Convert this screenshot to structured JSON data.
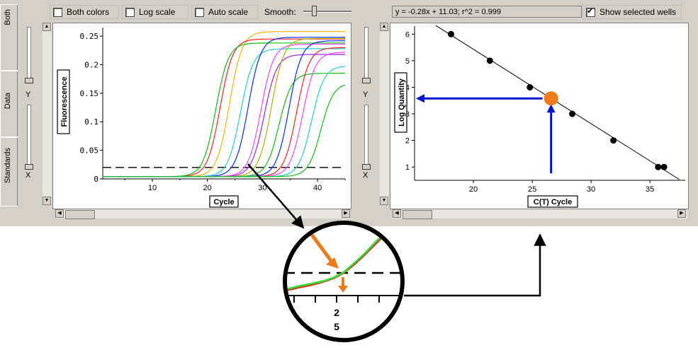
{
  "toolbar": {
    "both_colors": {
      "label": "Both colors",
      "checked": false
    },
    "log_scale": {
      "label": "Log scale",
      "checked": false
    },
    "auto_scale": {
      "label": "Auto scale",
      "checked": false
    },
    "smooth_label": "Smooth:",
    "smooth_level": 0.2
  },
  "side_tabs": [
    "Both",
    "Data",
    "Standards"
  ],
  "slider_axes": {
    "y": "Y",
    "x": "X"
  },
  "right_panel": {
    "equation": "y = -0.28x + 11.03;  r^2 = 0.999",
    "show_selected_wells": {
      "label": "Show selected wells",
      "checked": true
    }
  },
  "chart_data": [
    {
      "type": "line",
      "xlabel": "Cycle",
      "ylabel": "Fluorescence",
      "xlim": [
        1,
        45
      ],
      "ylim": [
        0,
        0.265
      ],
      "x_ticks": [
        "10",
        "20",
        "30",
        "40"
      ],
      "y_ticks": [
        "0",
        "0.05",
        "0.1",
        "0.15",
        "0.2",
        "0.25"
      ],
      "threshold": 0.02,
      "series": [
        {
          "color": "#ffb000",
          "midpoint": 24.0,
          "plateau": 0.258
        },
        {
          "color": "#ff2020",
          "midpoint": 22.3,
          "plateau": 0.245
        },
        {
          "color": "#10c010",
          "midpoint": 21.5,
          "plateau": 0.238
        },
        {
          "color": "#20d0d0",
          "midpoint": 26.0,
          "plateau": 0.228
        },
        {
          "color": "#0030ff",
          "midpoint": 27.4,
          "plateau": 0.248
        },
        {
          "color": "#ff40ff",
          "midpoint": 29.7,
          "plateau": 0.236
        },
        {
          "color": "#a020f0",
          "midpoint": 30.3,
          "plateau": 0.218
        },
        {
          "color": "#b0b000",
          "midpoint": 31.6,
          "plateau": 0.246
        },
        {
          "color": "#10c010",
          "midpoint": 33.0,
          "plateau": 0.185
        },
        {
          "color": "#0030ff",
          "midpoint": 34.8,
          "plateau": 0.242
        },
        {
          "color": "#ff2020",
          "midpoint": 36.2,
          "plateau": 0.23
        },
        {
          "color": "#ff40ff",
          "midpoint": 37.3,
          "plateau": 0.222
        },
        {
          "color": "#20d0d0",
          "midpoint": 38.9,
          "plateau": 0.198
        },
        {
          "color": "#10c010",
          "midpoint": 40.6,
          "plateau": 0.168
        }
      ]
    },
    {
      "type": "scatter",
      "xlabel": "C(T) Cycle",
      "ylabel": "Log Quantity",
      "xlim": [
        15.0,
        38.0
      ],
      "ylim": [
        0.5,
        6.3
      ],
      "x_ticks": [
        "20",
        "25",
        "30",
        "35"
      ],
      "y_ticks": [
        "1",
        "2",
        "3",
        "4",
        "5",
        "6"
      ],
      "points": [
        [
          18.1,
          6.0
        ],
        [
          21.4,
          5.0
        ],
        [
          24.8,
          4.0
        ],
        [
          28.4,
          3.0
        ],
        [
          31.9,
          2.0
        ],
        [
          35.7,
          1.0
        ],
        [
          36.2,
          1.0
        ]
      ],
      "fit": {
        "slope": -0.28,
        "intercept": 11.03
      },
      "highlight": {
        "x": 26.6,
        "y": 3.58
      },
      "colors": {
        "highlight": "#f07a1a",
        "arrow": "#0014d0"
      }
    }
  ],
  "zoom_inset": {
    "label_line1": "2",
    "label_line2": "5",
    "colors": {
      "arrow": "#f07a1a",
      "green": "#30e030",
      "red": "#e03020"
    }
  }
}
